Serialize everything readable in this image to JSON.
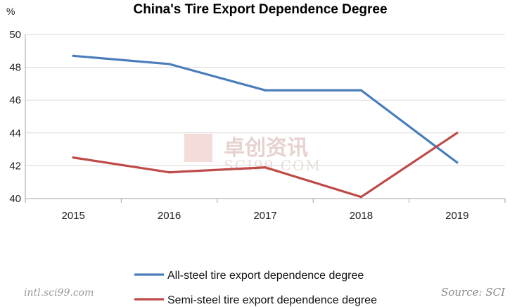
{
  "chart_data": {
    "type": "line",
    "title": "China's Tire Export Dependence Degree",
    "yunit": "%",
    "categories": [
      "2015",
      "2016",
      "2017",
      "2018",
      "2019"
    ],
    "ylim": [
      40,
      50
    ],
    "yticks": [
      40,
      42,
      44,
      46,
      48,
      50
    ],
    "grid": true,
    "legend_position": "bottom",
    "series": [
      {
        "name": "All-steel tire export dependence degree",
        "color": "#4a7ebb",
        "values": [
          48.7,
          48.2,
          46.6,
          46.6,
          42.2
        ]
      },
      {
        "name": "Semi-steel tire export dependence degree",
        "color": "#be4b48",
        "values": [
          42.5,
          41.6,
          41.9,
          40.1,
          44.0
        ]
      }
    ]
  },
  "watermark": {
    "cn": "卓创资讯",
    "en": "SCI99.COM"
  },
  "footer": {
    "left": "intl.sci99.com",
    "right": "Source: SCI"
  }
}
